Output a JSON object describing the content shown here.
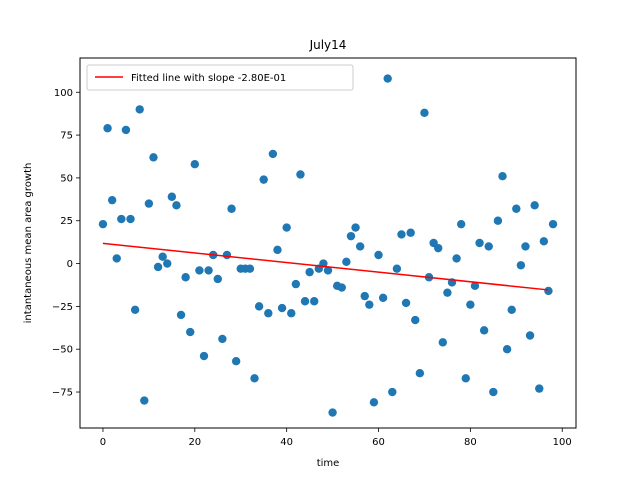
{
  "chart_data": {
    "type": "scatter",
    "title": "July14",
    "xlabel": "time",
    "ylabel": "intantaneous mean area growth",
    "xlim": [
      -5,
      103
    ],
    "ylim": [
      -96,
      120
    ],
    "xticks": [
      0,
      20,
      40,
      60,
      80,
      100
    ],
    "yticks": [
      -75,
      -50,
      -25,
      0,
      25,
      50,
      75,
      100
    ],
    "grid": false,
    "legend_position": "top-left",
    "colors": {
      "points": "#1f77b4",
      "fit_line": "#ff0000"
    },
    "points": {
      "x": [
        0,
        1,
        2,
        3,
        4,
        5,
        6,
        7,
        8,
        9,
        10,
        11,
        12,
        13,
        14,
        15,
        16,
        17,
        18,
        19,
        20,
        21,
        22,
        23,
        24,
        25,
        26,
        27,
        28,
        29,
        30,
        31,
        32,
        33,
        34,
        35,
        36,
        37,
        38,
        39,
        40,
        41,
        42,
        43,
        44,
        45,
        46,
        47,
        48,
        49,
        50,
        51,
        52,
        53,
        54,
        55,
        56,
        57,
        58,
        59,
        60,
        61,
        62,
        63,
        64,
        65,
        66,
        67,
        68,
        69,
        70,
        71,
        72,
        73,
        74,
        75,
        76,
        77,
        78,
        79,
        80,
        81,
        82,
        83,
        84,
        85,
        86,
        87,
        88,
        89,
        90,
        91,
        92,
        93,
        94,
        95,
        96,
        97,
        98
      ],
      "y": [
        23,
        79,
        37,
        3,
        26,
        78,
        26,
        -27,
        90,
        -80,
        35,
        62,
        -2,
        4,
        0,
        39,
        34,
        -30,
        -8,
        -40,
        58,
        -4,
        -54,
        -4,
        5,
        -9,
        -44,
        5,
        32,
        -57,
        -3,
        -3,
        -3,
        -67,
        -25,
        49,
        -29,
        64,
        8,
        -26,
        21,
        -29,
        -12,
        52,
        -22,
        -5,
        -22,
        -3,
        0,
        -4,
        -87,
        -13,
        -14,
        1,
        16,
        21,
        10,
        -19,
        -24,
        -81,
        5,
        -20,
        108,
        -75,
        -3,
        17,
        -23,
        18,
        -33,
        -64,
        88,
        -8,
        12,
        9,
        -46,
        -17,
        -11,
        3,
        23,
        -67,
        -24,
        -13,
        12,
        -39,
        10,
        -75,
        25,
        51,
        -50,
        -27,
        32,
        -1,
        10,
        -42,
        34,
        -73,
        13,
        -16,
        23
      ]
    },
    "fit_line": {
      "name": "Fitted line with slope -2.80E-01",
      "x": [
        0,
        97
      ],
      "y": [
        11.8,
        -15.4
      ]
    }
  }
}
